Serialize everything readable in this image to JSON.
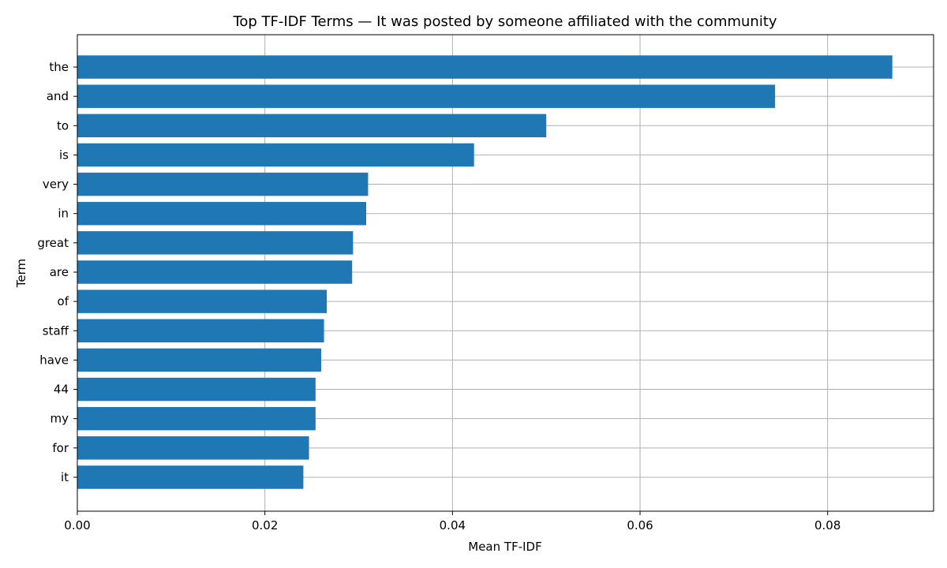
{
  "chart_data": {
    "type": "bar",
    "orientation": "horizontal",
    "title": "Top TF-IDF Terms — It was posted by someone affiliated with the community",
    "xlabel": "Mean TF-IDF",
    "ylabel": "Term",
    "categories": [
      "the",
      "and",
      "to",
      "is",
      "very",
      "in",
      "great",
      "are",
      "of",
      "staff",
      "have",
      "44",
      "my",
      "for",
      "it"
    ],
    "values": [
      0.0869,
      0.0744,
      0.05,
      0.0423,
      0.031,
      0.0308,
      0.0294,
      0.0293,
      0.0266,
      0.0263,
      0.026,
      0.0254,
      0.0254,
      0.0247,
      0.0241
    ],
    "xlim": [
      0,
      0.0913
    ],
    "xticks": [
      "0.00",
      "0.02",
      "0.04",
      "0.06",
      "0.08"
    ],
    "xtick_values": [
      0,
      0.02,
      0.04,
      0.06,
      0.08
    ],
    "grid": true,
    "bar_color": "#1f77b4"
  }
}
